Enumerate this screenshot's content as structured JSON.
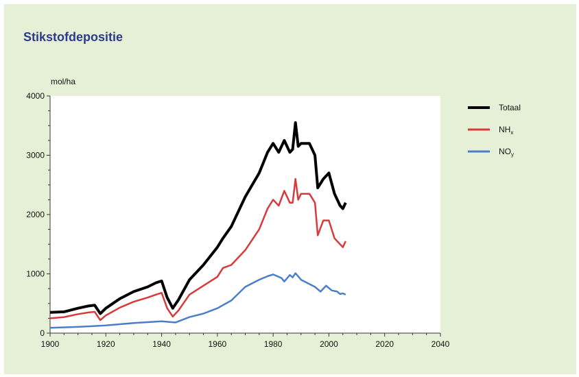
{
  "title": "Stikstofdepositie",
  "chart_data": {
    "type": "line",
    "title": "Stikstofdepositie",
    "xlabel": "",
    "ylabel": "mol/ha",
    "xlim": [
      1900,
      2040
    ],
    "ylim": [
      0,
      4000
    ],
    "x_ticks": [
      1900,
      1920,
      1940,
      1960,
      1980,
      2000,
      2020,
      2040
    ],
    "y_ticks": [
      0,
      1000,
      2000,
      3000,
      4000
    ],
    "x_tick_labels": [
      "1900",
      "1920",
      "1940",
      "1960",
      "1980",
      "2000",
      "2020",
      "2040"
    ],
    "y_tick_labels": [
      "0",
      "1000",
      "2000",
      "3000",
      "4000"
    ],
    "grid": false,
    "legend_position": "right",
    "legend": [
      {
        "text": "Totaal",
        "sub": "",
        "color": "#000000"
      },
      {
        "text": "NH",
        "sub": "x",
        "color": "#d9393a"
      },
      {
        "text": "NO",
        "sub": "y",
        "color": "#4a7ec9"
      }
    ],
    "series": [
      {
        "name": "Totaal",
        "color": "#000000",
        "points": [
          [
            1900,
            350
          ],
          [
            1905,
            360
          ],
          [
            1910,
            420
          ],
          [
            1914,
            460
          ],
          [
            1916,
            470
          ],
          [
            1918,
            330
          ],
          [
            1920,
            420
          ],
          [
            1925,
            580
          ],
          [
            1930,
            700
          ],
          [
            1935,
            780
          ],
          [
            1938,
            850
          ],
          [
            1940,
            880
          ],
          [
            1942,
            600
          ],
          [
            1944,
            420
          ],
          [
            1946,
            560
          ],
          [
            1950,
            900
          ],
          [
            1955,
            1150
          ],
          [
            1960,
            1450
          ],
          [
            1962,
            1600
          ],
          [
            1965,
            1800
          ],
          [
            1970,
            2300
          ],
          [
            1975,
            2700
          ],
          [
            1978,
            3050
          ],
          [
            1980,
            3200
          ],
          [
            1982,
            3050
          ],
          [
            1984,
            3250
          ],
          [
            1986,
            3050
          ],
          [
            1987,
            3100
          ],
          [
            1988,
            3550
          ],
          [
            1989,
            3150
          ],
          [
            1990,
            3200
          ],
          [
            1993,
            3200
          ],
          [
            1995,
            3000
          ],
          [
            1996,
            2450
          ],
          [
            1998,
            2600
          ],
          [
            2000,
            2700
          ],
          [
            2002,
            2350
          ],
          [
            2004,
            2150
          ],
          [
            2005,
            2100
          ],
          [
            2006,
            2200
          ]
        ]
      },
      {
        "name": "NHx",
        "color": "#d9393a",
        "points": [
          [
            1900,
            250
          ],
          [
            1905,
            270
          ],
          [
            1910,
            320
          ],
          [
            1914,
            350
          ],
          [
            1916,
            360
          ],
          [
            1918,
            220
          ],
          [
            1920,
            300
          ],
          [
            1925,
            430
          ],
          [
            1930,
            530
          ],
          [
            1935,
            600
          ],
          [
            1938,
            650
          ],
          [
            1940,
            680
          ],
          [
            1942,
            420
          ],
          [
            1944,
            280
          ],
          [
            1946,
            380
          ],
          [
            1950,
            650
          ],
          [
            1955,
            800
          ],
          [
            1960,
            950
          ],
          [
            1962,
            1100
          ],
          [
            1965,
            1150
          ],
          [
            1970,
            1400
          ],
          [
            1975,
            1750
          ],
          [
            1978,
            2100
          ],
          [
            1980,
            2250
          ],
          [
            1982,
            2150
          ],
          [
            1984,
            2400
          ],
          [
            1986,
            2200
          ],
          [
            1987,
            2200
          ],
          [
            1988,
            2600
          ],
          [
            1989,
            2250
          ],
          [
            1990,
            2350
          ],
          [
            1993,
            2350
          ],
          [
            1995,
            2200
          ],
          [
            1996,
            1650
          ],
          [
            1998,
            1900
          ],
          [
            2000,
            1900
          ],
          [
            2002,
            1600
          ],
          [
            2004,
            1500
          ],
          [
            2005,
            1450
          ],
          [
            2006,
            1550
          ]
        ]
      },
      {
        "name": "NOy",
        "color": "#4a7ec9",
        "points": [
          [
            1900,
            90
          ],
          [
            1910,
            105
          ],
          [
            1920,
            130
          ],
          [
            1930,
            170
          ],
          [
            1940,
            200
          ],
          [
            1945,
            180
          ],
          [
            1950,
            270
          ],
          [
            1955,
            330
          ],
          [
            1960,
            420
          ],
          [
            1965,
            550
          ],
          [
            1970,
            780
          ],
          [
            1975,
            900
          ],
          [
            1978,
            960
          ],
          [
            1980,
            990
          ],
          [
            1983,
            930
          ],
          [
            1984,
            870
          ],
          [
            1986,
            980
          ],
          [
            1987,
            940
          ],
          [
            1988,
            1010
          ],
          [
            1990,
            900
          ],
          [
            1995,
            780
          ],
          [
            1997,
            700
          ],
          [
            1999,
            800
          ],
          [
            2001,
            720
          ],
          [
            2003,
            700
          ],
          [
            2004,
            660
          ],
          [
            2005,
            670
          ],
          [
            2006,
            650
          ]
        ]
      }
    ]
  }
}
